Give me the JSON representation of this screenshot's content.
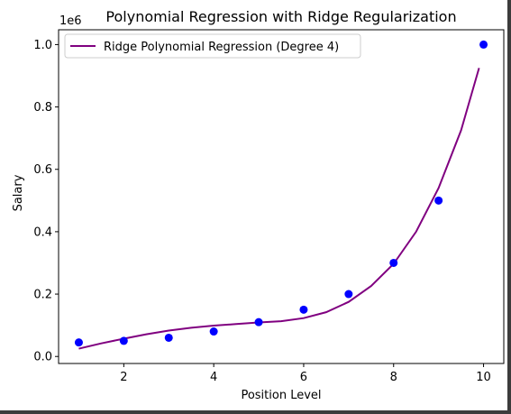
{
  "chart_data": {
    "type": "scatter",
    "title": "Polynomial Regression with Ridge Regularization",
    "xlabel": "Position Level",
    "ylabel": "Salary",
    "offset_label": "1e6",
    "xlim": [
      0.55,
      10.45
    ],
    "ylim": [
      -0.0225,
      1.0475
    ],
    "y_scale_factor": 1000000,
    "x_ticks": [
      2,
      4,
      6,
      8,
      10
    ],
    "x_tick_labels": [
      "2",
      "4",
      "6",
      "8",
      "10"
    ],
    "y_ticks": [
      0.0,
      0.2,
      0.4,
      0.6,
      0.8,
      1.0
    ],
    "y_tick_labels": [
      "0.0",
      "0.2",
      "0.4",
      "0.6",
      "0.8",
      "1.0"
    ],
    "grid": false,
    "legend_position": "top-left",
    "legend": [
      {
        "label": "Ridge Polynomial Regression (Degree 4)",
        "color": "#800080",
        "kind": "line"
      }
    ],
    "series": [
      {
        "kind": "scatter",
        "color": "#0000ff",
        "x": [
          1,
          2,
          3,
          4,
          5,
          6,
          7,
          8,
          9,
          10
        ],
        "y": [
          45000,
          50000,
          60000,
          80000,
          110000,
          150000,
          200000,
          300000,
          500000,
          1000000
        ]
      },
      {
        "kind": "line",
        "name": "Ridge Polynomial Regression (Degree 4)",
        "color": "#800080",
        "x": [
          1.0,
          1.5,
          2.0,
          2.5,
          3.0,
          3.5,
          4.0,
          4.5,
          5.0,
          5.5,
          6.0,
          6.5,
          7.0,
          7.5,
          8.0,
          8.5,
          9.0,
          9.5,
          9.9
        ],
        "y": [
          25000,
          42000,
          57000,
          71000,
          83000,
          92000,
          99000,
          104000,
          109000,
          113000,
          123000,
          142000,
          175000,
          226000,
          297000,
          400000,
          540000,
          725000,
          925000
        ]
      }
    ]
  },
  "colors": {
    "axes": "#000000",
    "frame_border": "#3c3c3c"
  }
}
